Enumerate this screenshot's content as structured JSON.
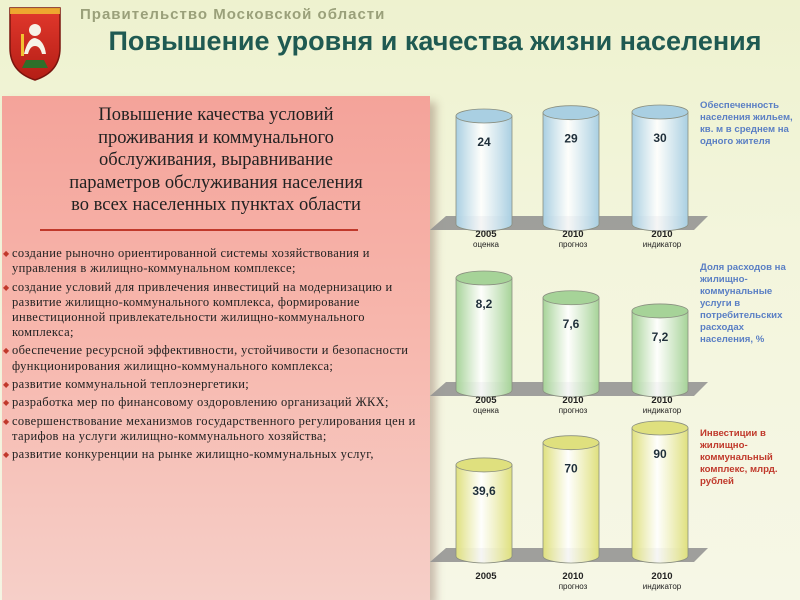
{
  "header": {
    "government": "Правительство Московской области",
    "title": "Повышение уровня и качества жизни населения"
  },
  "panel": {
    "title_lines": [
      "Повышение качества условий",
      "проживания и коммунального",
      "обслуживания, выравнивание",
      "параметров обслуживания населения",
      "во всех населенных пунктах области"
    ],
    "bullets": [
      "создание рыночно ориентированной системы хозяйствования и управления в жилищно-коммунальном комплексе;",
      "создание условий для привлечения инвестиций на модернизацию и развитие жилищно-коммунального комплекса, формирование инвестиционной привлекательности жилищно-коммунального комплекса;",
      "обеспечение ресурсной эффективности, устойчивости и безопасности функционирования жилищно-коммунального комплекса;",
      "развитие коммунальной теплоэнергетики;",
      "разработка мер по финансовому оздоровлению организаций ЖКХ;",
      "совершенствование механизмов государственного регулирования цен и тарифов на услуги жилищно-коммунального хозяйства;",
      "развитие конкуренции на рынке жилищно-коммунальных услуг,"
    ]
  },
  "colors": {
    "title": "#1f5a52",
    "panel": "#f4a39a",
    "chart1_bar": "#a9cfe2",
    "chart2_bar": "#a6d398",
    "chart3_bar": "#dfe07e",
    "desc_blue": "#5a7fc4",
    "desc_red": "#c0392b"
  },
  "chart_data": [
    {
      "type": "bar",
      "categories": [
        [
          "2005",
          "оценка"
        ],
        [
          "2010",
          "прогноз"
        ],
        [
          "2010",
          "индикатор"
        ]
      ],
      "values": [
        24,
        29,
        30
      ],
      "value_labels": [
        "24",
        "29",
        "30"
      ],
      "description": "Обеспеченность населения жильем, кв. м в среднем на одного жителя",
      "ylim": [
        0,
        30
      ]
    },
    {
      "type": "bar",
      "categories": [
        [
          "2005",
          "оценка"
        ],
        [
          "2010",
          "прогноз"
        ],
        [
          "2010",
          "индикатор"
        ]
      ],
      "values": [
        8.2,
        7.6,
        7.2
      ],
      "value_labels": [
        "8,2",
        "7,6",
        "7,2"
      ],
      "description": "Доля расходов на жилищно-коммунальные услуги в потребительских расходах населения, %",
      "ylim": [
        6.5,
        8.2
      ]
    },
    {
      "type": "bar",
      "categories": [
        [
          "2005",
          ""
        ],
        [
          "2010",
          "прогноз"
        ],
        [
          "2010",
          "индикатор"
        ]
      ],
      "values": [
        39.6,
        70,
        90
      ],
      "value_labels": [
        "39,6",
        "70",
        "90"
      ],
      "description": "Инвестиции в жилищно-коммунальный комплекс, млрд. рублей",
      "ylim": [
        0,
        90
      ]
    }
  ]
}
